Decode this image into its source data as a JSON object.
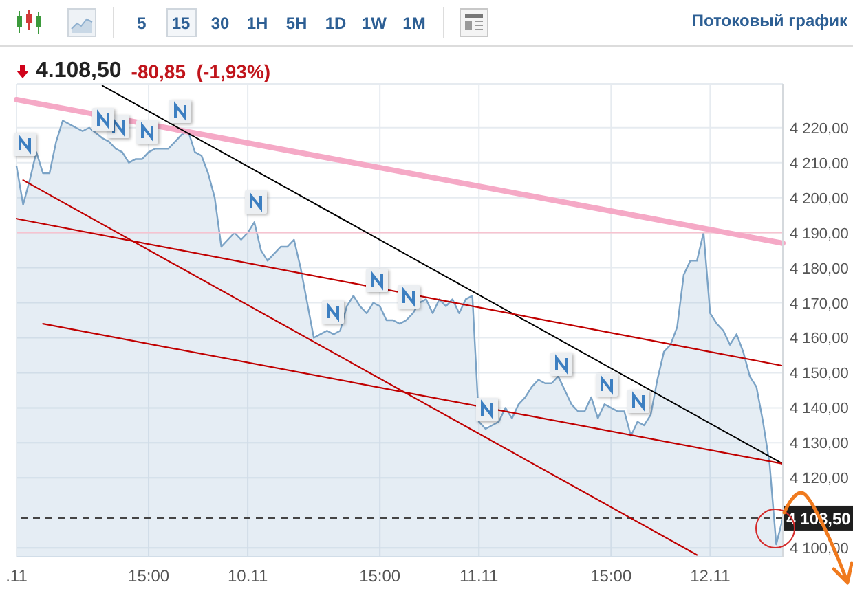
{
  "chart_data": {
    "type": "area",
    "title": "4.108,50",
    "subtitle": "-80,85 (-1,93%)",
    "annotations": [
      "5",
      "15",
      "30",
      "1H",
      "5H",
      "1D",
      "1W",
      "1M",
      "Потоковый график"
    ],
    "categories": [
      ".11",
      null,
      null,
      null,
      null,
      null,
      null,
      null,
      null,
      null,
      null,
      null,
      null,
      null,
      null,
      null,
      null,
      null,
      null,
      null,
      "15:00",
      null,
      null,
      null,
      null,
      null,
      null,
      null,
      null,
      null,
      null,
      null,
      null,
      null,
      null,
      "10.11",
      null,
      null,
      null,
      null,
      null,
      null,
      null,
      null,
      null,
      null,
      null,
      null,
      null,
      null,
      null,
      null,
      null,
      null,
      null,
      "15:00",
      null,
      null,
      null,
      null,
      null,
      null,
      null,
      null,
      null,
      null,
      null,
      null,
      null,
      null,
      "11.11",
      null,
      null,
      null,
      null,
      null,
      null,
      null,
      null,
      null,
      null,
      null,
      null,
      null,
      null,
      null,
      null,
      null,
      null,
      null,
      "15:00",
      null,
      null,
      null,
      null,
      null,
      null,
      null,
      null,
      null,
      null,
      null,
      null,
      null,
      null,
      "12.11",
      null,
      null,
      null,
      null,
      null,
      null,
      null,
      null,
      null,
      null,
      null
    ],
    "series": [
      {
        "color": "#7ba3c6",
        "values": [
          4209,
          4198,
          4205,
          4213,
          4207,
          4207,
          4216,
          4222,
          4221,
          4220,
          4219,
          4220,
          null,
          4217,
          4216,
          4214,
          4213,
          4210,
          4211,
          4211,
          4213,
          4214,
          4214,
          4214,
          4216,
          4218,
          4219,
          4213,
          4212,
          4207,
          4200,
          4186,
          4188,
          4190,
          4188,
          4190,
          4193,
          4185,
          4182,
          4184,
          4186,
          4186,
          4188,
          4180,
          4170,
          4160,
          4161,
          4162,
          4161,
          4162,
          4169,
          4172,
          4169,
          4167,
          4170,
          4169,
          4165,
          4165,
          4164,
          4165,
          4167,
          4170,
          4171,
          4167,
          4171,
          4169,
          4171,
          4167,
          4171,
          4172,
          4136,
          4134,
          null,
          4136,
          4140,
          4137,
          4141,
          4143,
          4146,
          4148,
          4147,
          4147,
          4149,
          null,
          4141,
          4139,
          4139,
          4143,
          4137,
          4141,
          4140,
          4139,
          4139,
          4132,
          4136,
          4135,
          4138,
          4148,
          4156,
          4158,
          4163,
          4178,
          4182,
          4182,
          4190,
          4167,
          4164,
          4162,
          4158,
          4161,
          4156,
          4149,
          4146,
          4136,
          4124,
          4101,
          4108.5
        ]
      },
      {
        "type": "line",
        "color": "#f5a9c6",
        "values": [
          4228,
          null,
          null,
          null,
          null,
          null,
          null,
          null,
          null,
          null,
          null,
          null,
          null,
          null,
          null,
          null,
          null,
          null,
          null,
          null,
          null,
          null,
          null,
          null,
          null,
          null,
          null,
          null,
          null,
          null,
          null,
          null,
          null,
          null,
          null,
          null,
          null,
          null,
          null,
          null,
          null,
          null,
          null,
          null,
          null,
          null,
          null,
          null,
          null,
          null,
          null,
          null,
          null,
          null,
          null,
          null,
          null,
          null,
          null,
          null,
          null,
          null,
          null,
          null,
          null,
          null,
          null,
          null,
          null,
          null,
          null,
          null,
          null,
          null,
          null,
          null,
          null,
          null,
          null,
          null,
          null,
          null,
          null,
          null,
          null,
          null,
          null,
          null,
          null,
          null,
          null,
          null,
          null,
          null,
          null,
          null,
          null,
          null,
          null,
          null,
          null,
          null,
          null,
          null,
          null,
          null,
          null,
          null,
          null,
          null,
          null,
          null,
          null,
          null,
          null,
          null,
          4187
        ]
      },
      {
        "type": "line",
        "color": "#000000",
        "values": [
          null,
          null,
          null,
          null,
          null,
          null,
          null,
          null,
          null,
          null,
          null,
          null,
          null,
          4232,
          null,
          null,
          null,
          null,
          null,
          null,
          null,
          null,
          null,
          null,
          null,
          null,
          null,
          null,
          null,
          null,
          null,
          null,
          null,
          null,
          null,
          null,
          null,
          null,
          null,
          null,
          null,
          null,
          null,
          null,
          null,
          null,
          null,
          null,
          null,
          null,
          null,
          null,
          null,
          null,
          null,
          null,
          null,
          null,
          null,
          null,
          null,
          null,
          null,
          null,
          null,
          null,
          null,
          null,
          null,
          null,
          null,
          null,
          null,
          null,
          null,
          null,
          null,
          null,
          null,
          null,
          null,
          null,
          null,
          null,
          null,
          null,
          null,
          null,
          null,
          null,
          null,
          null,
          null,
          null,
          null,
          null,
          null,
          null,
          null,
          null,
          null,
          null,
          null,
          null,
          null,
          null,
          null,
          null,
          null,
          null,
          null,
          null,
          null,
          null,
          null,
          null,
          4124
        ]
      },
      {
        "type": "line",
        "color": "#c00000",
        "values": [
          4194,
          null,
          null,
          null,
          null,
          null,
          null,
          null,
          null,
          null,
          null,
          null,
          null,
          null,
          null,
          null,
          null,
          null,
          null,
          null,
          null,
          null,
          null,
          null,
          null,
          null,
          null,
          null,
          null,
          null,
          null,
          null,
          null,
          null,
          null,
          null,
          null,
          null,
          null,
          null,
          null,
          null,
          null,
          null,
          null,
          null,
          null,
          null,
          null,
          null,
          null,
          null,
          null,
          null,
          null,
          null,
          null,
          null,
          null,
          null,
          null,
          null,
          null,
          null,
          null,
          null,
          null,
          null,
          null,
          null,
          null,
          null,
          null,
          null,
          null,
          null,
          null,
          null,
          null,
          null,
          null,
          null,
          null,
          null,
          null,
          null,
          null,
          null,
          null,
          null,
          null,
          null,
          null,
          null,
          null,
          null,
          null,
          null,
          null,
          null,
          null,
          null,
          null,
          null,
          null,
          null,
          null,
          null,
          null,
          null,
          null,
          null,
          null,
          null,
          null,
          null,
          4152
        ]
      },
      {
        "type": "line",
        "color": "#c00000",
        "values": [
          null,
          null,
          null,
          null,
          4164,
          null,
          null,
          null,
          null,
          null,
          null,
          null,
          null,
          null,
          null,
          null,
          null,
          null,
          null,
          null,
          null,
          null,
          null,
          null,
          null,
          null,
          null,
          null,
          null,
          null,
          null,
          null,
          null,
          null,
          null,
          null,
          null,
          null,
          null,
          null,
          null,
          null,
          null,
          null,
          null,
          null,
          null,
          null,
          null,
          null,
          null,
          null,
          null,
          null,
          null,
          null,
          null,
          null,
          null,
          null,
          null,
          null,
          null,
          null,
          null,
          null,
          null,
          null,
          null,
          null,
          null,
          null,
          null,
          null,
          null,
          null,
          null,
          null,
          null,
          null,
          null,
          null,
          null,
          null,
          null,
          null,
          null,
          null,
          null,
          null,
          null,
          null,
          null,
          null,
          null,
          null,
          null,
          null,
          null,
          null,
          null,
          null,
          null,
          null,
          null,
          null,
          null,
          null,
          null,
          null,
          null,
          null,
          null,
          null,
          null,
          null,
          4124
        ]
      },
      {
        "type": "line",
        "color": "#c00000",
        "values": [
          null,
          4205,
          null,
          null,
          null,
          null,
          null,
          null,
          null,
          null,
          null,
          null,
          null,
          null,
          null,
          null,
          null,
          null,
          null,
          null,
          null,
          null,
          null,
          null,
          null,
          null,
          null,
          null,
          null,
          null,
          null,
          null,
          null,
          null,
          null,
          null,
          null,
          null,
          null,
          null,
          null,
          null,
          null,
          null,
          null,
          null,
          null,
          null,
          null,
          null,
          null,
          null,
          null,
          null,
          null,
          null,
          null,
          null,
          null,
          null,
          null,
          null,
          null,
          null,
          null,
          null,
          null,
          null,
          null,
          null,
          null,
          null,
          null,
          null,
          null,
          null,
          null,
          null,
          null,
          null,
          null,
          null,
          null,
          null,
          null,
          null,
          null,
          null,
          null,
          null,
          null,
          null,
          null,
          null,
          null,
          null,
          null,
          null,
          null,
          null,
          null,
          null,
          null,
          4098,
          null,
          null,
          null,
          null,
          null,
          null,
          null,
          null,
          null,
          null,
          null,
          null,
          null
        ]
      }
    ],
    "ylim": [
      4097.5,
      4232.5
    ],
    "yticks": [
      {
        "value": 4100,
        "label": "4 100,00"
      },
      {
        "value": 4120,
        "label": "4 120,00"
      },
      {
        "value": 4130,
        "label": "4 130,00"
      },
      {
        "value": 4140,
        "label": "4 140,00"
      },
      {
        "value": 4150,
        "label": "4 150,00"
      },
      {
        "value": 4160,
        "label": "4 160,00"
      },
      {
        "value": 4170,
        "label": "4 170,00"
      },
      {
        "value": 4180,
        "label": "4 180,00"
      },
      {
        "value": 4190,
        "label": "4 190,00"
      },
      {
        "value": 4200,
        "label": "4 200,00"
      },
      {
        "value": 4210,
        "label": "4 210,00"
      },
      {
        "value": 4220,
        "label": "4 220,00"
      }
    ],
    "grid": true,
    "ref_lines": [
      {
        "axis": "y",
        "value": 4190,
        "color": "#f7c3d0"
      },
      {
        "axis": "y",
        "value": 4108.5,
        "label": "4 108,50",
        "color": "#444444",
        "line_style": "dashed"
      }
    ]
  }
}
